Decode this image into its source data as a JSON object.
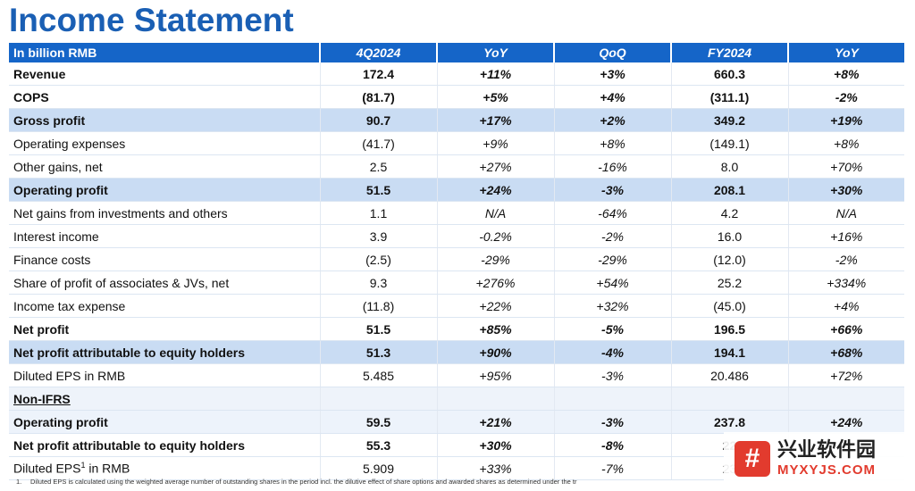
{
  "page": {
    "title": "Income Statement"
  },
  "table": {
    "headers": [
      "In billion RMB",
      "4Q2024",
      "YoY",
      "QoQ",
      "FY2024",
      "YoY"
    ],
    "rows": [
      {
        "label": "Revenue",
        "q": "172.4",
        "qyoy": "+11%",
        "qoq": "+3%",
        "fy": "660.3",
        "fyyoy": "+8%"
      },
      {
        "label": "COPS",
        "q": "(81.7)",
        "qyoy": "+5%",
        "qoq": "+4%",
        "fy": "(311.1)",
        "fyyoy": "-2%"
      },
      {
        "label": "Gross profit",
        "q": "90.7",
        "qyoy": "+17%",
        "qoq": "+2%",
        "fy": "349.2",
        "fyyoy": "+19%"
      },
      {
        "label": "Operating expenses",
        "q": "(41.7)",
        "qyoy": "+9%",
        "qoq": "+8%",
        "fy": "(149.1)",
        "fyyoy": "+8%"
      },
      {
        "label": "Other gains, net",
        "q": "2.5",
        "qyoy": "+27%",
        "qoq": "-16%",
        "fy": "8.0",
        "fyyoy": "+70%"
      },
      {
        "label": "Operating profit",
        "q": "51.5",
        "qyoy": "+24%",
        "qoq": "-3%",
        "fy": "208.1",
        "fyyoy": "+30%"
      },
      {
        "label": "Net gains from investments and others",
        "q": "1.1",
        "qyoy": "N/A",
        "qoq": "-64%",
        "fy": "4.2",
        "fyyoy": "N/A"
      },
      {
        "label": "Interest income",
        "q": "3.9",
        "qyoy": "-0.2%",
        "qoq": "-2%",
        "fy": "16.0",
        "fyyoy": "+16%"
      },
      {
        "label": "Finance costs",
        "q": "(2.5)",
        "qyoy": "-29%",
        "qoq": "-29%",
        "fy": "(12.0)",
        "fyyoy": "-2%"
      },
      {
        "label": "Share of profit of associates & JVs, net",
        "q": "9.3",
        "qyoy": "+276%",
        "qoq": "+54%",
        "fy": "25.2",
        "fyyoy": "+334%"
      },
      {
        "label": "Income tax expense",
        "q": "(11.8)",
        "qyoy": "+22%",
        "qoq": "+32%",
        "fy": "(45.0)",
        "fyyoy": "+4%"
      },
      {
        "label": "Net profit",
        "q": "51.5",
        "qyoy": "+85%",
        "qoq": "-5%",
        "fy": "196.5",
        "fyyoy": "+66%"
      },
      {
        "label": "Net profit attributable to equity holders",
        "q": "51.3",
        "qyoy": "+90%",
        "qoq": "-4%",
        "fy": "194.1",
        "fyyoy": "+68%"
      },
      {
        "label": "Diluted EPS in RMB",
        "q": "5.485",
        "qyoy": "+95%",
        "qoq": "-3%",
        "fy": "20.486",
        "fyyoy": "+72%"
      },
      {
        "label": "Non-IFRS"
      },
      {
        "label": "Operating profit",
        "q": "59.5",
        "qyoy": "+21%",
        "qoq": "-3%",
        "fy": "237.8",
        "fyyoy": "+24%"
      },
      {
        "label": "Net profit attributable to equity holders",
        "q": "55.3",
        "qyoy": "+30%",
        "qoq": "-8%",
        "fy": "22",
        "fyyoy": ""
      },
      {
        "label": "Diluted EPS",
        "sup": "1",
        "label_tail": " in RMB",
        "q": "5.909",
        "qyoy": "+33%",
        "qoq": "-7%",
        "fy": "23",
        "fyyoy": ""
      }
    ]
  },
  "footnote": {
    "num": "1.",
    "text": "Diluted EPS is calculated using the weighted average number of outstanding shares in the period incl. the dilutive effect of share options and awarded shares as determined under the tr"
  },
  "watermark": {
    "logo_glyph": "#",
    "name": "兴业软件园",
    "url": "MYXYJS.COM"
  }
}
